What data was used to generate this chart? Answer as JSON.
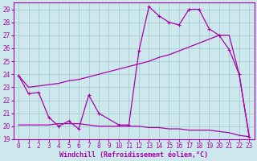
{
  "xlabel": "Windchill (Refroidissement éolien,°C)",
  "bg_color": "#cce8ec",
  "grid_color": "#a0c8cc",
  "line_color": "#aa00aa",
  "xlim": [
    -0.5,
    23.5
  ],
  "ylim": [
    19,
    29.5
  ],
  "xticks": [
    0,
    1,
    2,
    3,
    4,
    5,
    6,
    7,
    8,
    9,
    10,
    11,
    12,
    13,
    14,
    15,
    16,
    17,
    18,
    19,
    20,
    21,
    22,
    23
  ],
  "yticks": [
    19,
    20,
    21,
    22,
    23,
    24,
    25,
    26,
    27,
    28,
    29
  ],
  "line1_x": [
    0,
    1,
    2,
    3,
    4,
    5,
    6,
    7,
    8,
    10,
    11,
    12,
    13,
    14,
    15,
    16,
    17,
    18,
    19,
    20,
    21,
    22,
    23
  ],
  "line1_y": [
    23.9,
    22.5,
    22.6,
    20.7,
    20.0,
    20.4,
    19.8,
    22.4,
    21.0,
    20.1,
    20.1,
    25.8,
    29.2,
    28.5,
    28.0,
    27.8,
    29.0,
    29.0,
    27.5,
    27.0,
    25.9,
    24.0,
    19.2
  ],
  "line2_x": [
    0,
    1,
    2,
    3,
    4,
    5,
    6,
    7,
    8,
    9,
    10,
    11,
    12,
    13,
    14,
    15,
    16,
    17,
    18,
    19,
    20,
    21,
    22,
    23
  ],
  "line2_y": [
    23.9,
    23.0,
    23.1,
    23.2,
    23.3,
    23.5,
    23.6,
    23.8,
    24.0,
    24.2,
    24.4,
    24.6,
    24.8,
    25.0,
    25.3,
    25.5,
    25.8,
    26.1,
    26.4,
    26.7,
    27.0,
    27.0,
    24.0,
    19.2
  ],
  "line3_x": [
    0,
    1,
    2,
    3,
    4,
    5,
    6,
    7,
    8,
    9,
    10,
    11,
    12,
    13,
    14,
    15,
    16,
    17,
    18,
    19,
    20,
    21,
    22,
    23
  ],
  "line3_y": [
    20.1,
    20.1,
    20.1,
    20.1,
    20.2,
    20.2,
    20.2,
    20.1,
    20.0,
    20.0,
    20.0,
    20.0,
    20.0,
    19.9,
    19.9,
    19.8,
    19.8,
    19.7,
    19.7,
    19.7,
    19.6,
    19.5,
    19.3,
    19.2
  ],
  "tick_fontsize": 5.5,
  "xlabel_fontsize": 6.0
}
